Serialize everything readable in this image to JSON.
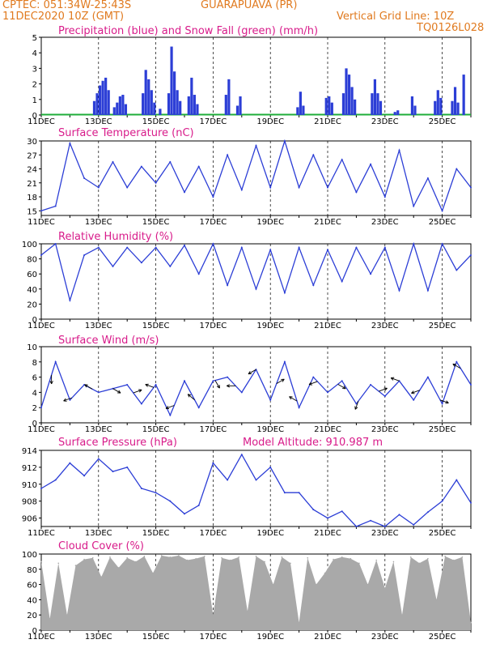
{
  "header": {
    "source_coords": "CPTEC:   051:34W-25:43S",
    "station": "GUARAPUAVA (PR)",
    "run": "11DEC2020 10Z (GMT)",
    "grid_note": "Vertical Grid Line: 10Z",
    "code": "TQ0126L028"
  },
  "colors": {
    "header": "#e07a1f",
    "title": "#d81b8a",
    "line": "#2c3ed6",
    "snow": "#1fae3a",
    "cloud": "#a9a9a9"
  },
  "chart_data": [
    {
      "type": "bar",
      "title": "Precipitation (blue) and Snow Fall (green) (mm/h)",
      "x_labels": [
        "11DEC",
        "13DEC",
        "15DEC",
        "17DEC",
        "19DEC",
        "21DEC",
        "23DEC",
        "25DEC"
      ],
      "ylim": [
        0,
        5
      ],
      "yticks": [
        0,
        1,
        2,
        3,
        4,
        5
      ],
      "values": [
        {
          "x": 1.85,
          "y": 0.9
        },
        {
          "x": 1.95,
          "y": 1.4
        },
        {
          "x": 2.05,
          "y": 1.9
        },
        {
          "x": 2.15,
          "y": 2.2
        },
        {
          "x": 2.25,
          "y": 2.4
        },
        {
          "x": 2.35,
          "y": 1.6
        },
        {
          "x": 2.55,
          "y": 0.5
        },
        {
          "x": 2.65,
          "y": 0.8
        },
        {
          "x": 2.75,
          "y": 1.2
        },
        {
          "x": 2.85,
          "y": 1.3
        },
        {
          "x": 2.95,
          "y": 0.7
        },
        {
          "x": 3.55,
          "y": 1.4
        },
        {
          "x": 3.65,
          "y": 2.9
        },
        {
          "x": 3.75,
          "y": 2.3
        },
        {
          "x": 3.85,
          "y": 1.6
        },
        {
          "x": 3.95,
          "y": 0.8
        },
        {
          "x": 4.15,
          "y": 0.4
        },
        {
          "x": 4.45,
          "y": 1.4
        },
        {
          "x": 4.55,
          "y": 4.4
        },
        {
          "x": 4.65,
          "y": 2.8
        },
        {
          "x": 4.75,
          "y": 1.6
        },
        {
          "x": 4.85,
          "y": 0.9
        },
        {
          "x": 5.15,
          "y": 1.2
        },
        {
          "x": 5.25,
          "y": 2.4
        },
        {
          "x": 5.35,
          "y": 1.3
        },
        {
          "x": 5.45,
          "y": 0.7
        },
        {
          "x": 6.45,
          "y": 1.3
        },
        {
          "x": 6.55,
          "y": 2.3
        },
        {
          "x": 6.85,
          "y": 0.6
        },
        {
          "x": 6.95,
          "y": 1.2
        },
        {
          "x": 8.95,
          "y": 0.5
        },
        {
          "x": 9.05,
          "y": 1.5
        },
        {
          "x": 9.15,
          "y": 0.6
        },
        {
          "x": 9.95,
          "y": 1.1
        },
        {
          "x": 10.05,
          "y": 1.2
        },
        {
          "x": 10.15,
          "y": 0.8
        },
        {
          "x": 10.55,
          "y": 1.4
        },
        {
          "x": 10.65,
          "y": 3.0
        },
        {
          "x": 10.75,
          "y": 2.6
        },
        {
          "x": 10.85,
          "y": 1.8
        },
        {
          "x": 10.95,
          "y": 1.0
        },
        {
          "x": 11.55,
          "y": 1.4
        },
        {
          "x": 11.65,
          "y": 2.3
        },
        {
          "x": 11.75,
          "y": 1.4
        },
        {
          "x": 11.85,
          "y": 0.9
        },
        {
          "x": 12.35,
          "y": 0.2
        },
        {
          "x": 12.45,
          "y": 0.3
        },
        {
          "x": 12.95,
          "y": 1.2
        },
        {
          "x": 13.05,
          "y": 0.6
        },
        {
          "x": 13.75,
          "y": 0.9
        },
        {
          "x": 13.85,
          "y": 1.6
        },
        {
          "x": 13.95,
          "y": 1.1
        },
        {
          "x": 14.35,
          "y": 0.9
        },
        {
          "x": 14.45,
          "y": 1.8
        },
        {
          "x": 14.55,
          "y": 0.8
        },
        {
          "x": 14.75,
          "y": 2.6
        }
      ]
    },
    {
      "type": "line",
      "title": "Surface Temperature (nC)",
      "x_labels": [
        "11DEC",
        "13DEC",
        "15DEC",
        "17DEC",
        "19DEC",
        "21DEC",
        "23DEC",
        "25DEC"
      ],
      "ylim": [
        14,
        30
      ],
      "yticks": [
        15,
        18,
        21,
        24,
        27,
        30
      ],
      "x": [
        0,
        0.5,
        1,
        1.5,
        2,
        2.5,
        3,
        3.5,
        4,
        4.5,
        5,
        5.5,
        6,
        6.5,
        7,
        7.5,
        8,
        8.5,
        9,
        9.5,
        10,
        10.5,
        11,
        11.5,
        12,
        12.5,
        13,
        13.5,
        14,
        14.5,
        15
      ],
      "y": [
        15,
        16,
        29.5,
        22,
        20,
        25.5,
        20,
        24.5,
        21,
        25.5,
        19,
        24.5,
        18,
        27,
        19.5,
        29,
        20,
        30,
        20,
        27,
        20,
        26,
        19,
        25,
        18,
        28,
        16,
        22,
        15,
        24,
        20
      ]
    },
    {
      "type": "line",
      "title": "Relative Humidity (%)",
      "x_labels": [
        "11DEC",
        "13DEC",
        "15DEC",
        "17DEC",
        "19DEC",
        "21DEC",
        "23DEC",
        "25DEC"
      ],
      "ylim": [
        0,
        100
      ],
      "yticks": [
        0,
        20,
        40,
        60,
        80,
        100
      ],
      "x": [
        0,
        0.5,
        1,
        1.5,
        2,
        2.5,
        3,
        3.5,
        4,
        4.5,
        5,
        5.5,
        6,
        6.5,
        7,
        7.5,
        8,
        8.5,
        9,
        9.5,
        10,
        10.5,
        11,
        11.5,
        12,
        12.5,
        13,
        13.5,
        14,
        14.5,
        15
      ],
      "y": [
        85,
        100,
        25,
        85,
        95,
        70,
        95,
        75,
        95,
        70,
        98,
        60,
        100,
        45,
        95,
        40,
        92,
        35,
        95,
        45,
        92,
        50,
        95,
        60,
        95,
        38,
        100,
        38,
        100,
        65,
        85
      ]
    },
    {
      "type": "line",
      "title": "Surface Wind (m/s)",
      "x_labels": [
        "11DEC",
        "13DEC",
        "15DEC",
        "17DEC",
        "19DEC",
        "21DEC",
        "23DEC",
        "25DEC"
      ],
      "ylim": [
        0,
        10
      ],
      "yticks": [
        0,
        2,
        4,
        6,
        8,
        10
      ],
      "x": [
        0,
        0.5,
        1,
        1.5,
        2,
        2.5,
        3,
        3.5,
        4,
        4.5,
        5,
        5.5,
        6,
        6.5,
        7,
        7.5,
        8,
        8.5,
        9,
        9.5,
        10,
        10.5,
        11,
        11.5,
        12,
        12.5,
        13,
        13.5,
        14,
        14.5,
        15
      ],
      "y": [
        2,
        8,
        3,
        5,
        4,
        4.5,
        5,
        2.5,
        5,
        1,
        5.5,
        2,
        5.5,
        6,
        4,
        7,
        3,
        8,
        2,
        6,
        4,
        5.5,
        2.5,
        5,
        3.5,
        5.5,
        3,
        6,
        2.5,
        8,
        5
      ]
    },
    {
      "type": "line",
      "title": "Surface Pressure (hPa)",
      "extra_label": "Model Altitude: 910.987 m",
      "x_labels": [
        "11DEC",
        "13DEC",
        "15DEC",
        "17DEC",
        "19DEC",
        "21DEC",
        "23DEC",
        "25DEC"
      ],
      "ylim": [
        905,
        914
      ],
      "yticks": [
        906,
        908,
        910,
        912,
        914
      ],
      "x": [
        0,
        0.5,
        1,
        1.5,
        2,
        2.5,
        3,
        3.5,
        4,
        4.5,
        5,
        5.5,
        6,
        6.5,
        7,
        7.5,
        8,
        8.5,
        9,
        9.5,
        10,
        10.5,
        11,
        11.5,
        12,
        12.5,
        13,
        13.5,
        14,
        14.5,
        15
      ],
      "y": [
        909.5,
        910.5,
        912.5,
        911,
        913,
        911.5,
        912,
        909.5,
        909,
        908,
        906.5,
        907.5,
        912.5,
        910.5,
        913.5,
        910.5,
        912,
        909,
        909,
        907,
        906,
        906.8,
        905,
        905.7,
        905,
        906.4,
        905.2,
        906.7,
        908,
        910.5,
        907.8
      ]
    },
    {
      "type": "area",
      "title": "Cloud Cover (%)",
      "x_labels": [
        "11DEC",
        "13DEC",
        "15DEC",
        "17DEC",
        "19DEC",
        "21DEC",
        "23DEC",
        "25DEC"
      ],
      "ylim": [
        0,
        100
      ],
      "yticks": [
        0,
        20,
        40,
        60,
        80,
        100
      ],
      "x": [
        0,
        0.3,
        0.6,
        0.9,
        1.2,
        1.5,
        1.8,
        2.1,
        2.4,
        2.7,
        3,
        3.3,
        3.6,
        3.9,
        4.2,
        4.5,
        4.8,
        5.1,
        5.4,
        5.7,
        6,
        6.3,
        6.6,
        6.9,
        7.2,
        7.5,
        7.8,
        8.1,
        8.4,
        8.7,
        9,
        9.3,
        9.6,
        9.9,
        10.2,
        10.5,
        10.8,
        11.1,
        11.4,
        11.7,
        12,
        12.3,
        12.6,
        12.9,
        13.2,
        13.5,
        13.8,
        14.1,
        14.4,
        14.7,
        15
      ],
      "y": [
        90,
        15,
        88,
        20,
        85,
        93,
        95,
        70,
        96,
        82,
        95,
        90,
        97,
        75,
        98,
        96,
        98,
        92,
        94,
        97,
        20,
        95,
        92,
        96,
        25,
        97,
        90,
        60,
        96,
        88,
        10,
        95,
        60,
        75,
        93,
        96,
        94,
        88,
        60,
        92,
        55,
        90,
        20,
        96,
        88,
        94,
        40,
        97,
        92,
        96,
        10
      ]
    }
  ]
}
